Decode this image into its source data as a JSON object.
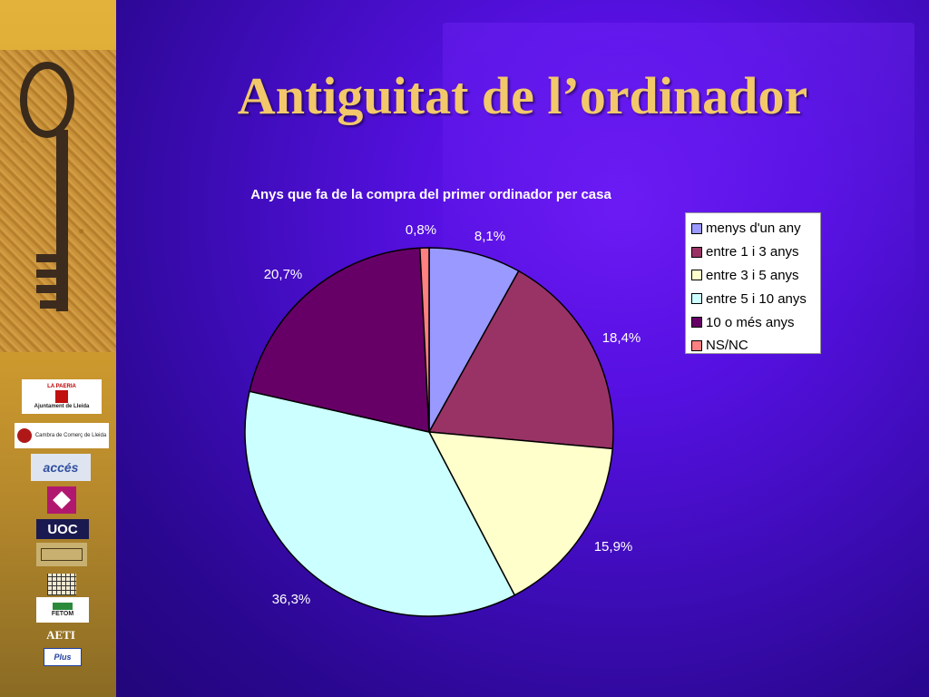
{
  "slide": {
    "title": "Antiguitat de l’ordinador"
  },
  "sidebar": {
    "logos": [
      {
        "name": "la-paeria-logo",
        "line1": "LA PAERIA",
        "line2": "Ajuntament de Lleida"
      },
      {
        "name": "cambra-comerc-logo",
        "text": "Cambra de Comerç de Lleida"
      },
      {
        "name": "acces-logo",
        "text": "accés"
      },
      {
        "name": "emblem-logo",
        "text": ""
      },
      {
        "name": "uoc-logo",
        "text": "UOC"
      },
      {
        "name": "building-logo",
        "text": ""
      },
      {
        "name": "grid-logo",
        "text": ""
      },
      {
        "name": "fetom-logo",
        "text": "FETOM"
      },
      {
        "name": "aeti-logo",
        "text": "AETI"
      },
      {
        "name": "plus-logo",
        "text": "Plus"
      }
    ]
  },
  "chart_data": {
    "type": "pie",
    "title": "Anys que fa de la compra del primer ordinador per casa",
    "legend_position": "top-right",
    "categories": [
      "menys d'un any",
      "entre 1 i 3 anys",
      "entre 3 i 5 anys",
      "entre 5 i 10 anys",
      "10 o més anys",
      "NS/NC"
    ],
    "values": [
      8.1,
      18.4,
      15.9,
      36.3,
      20.7,
      0.8
    ],
    "labels": [
      "8,1%",
      "18,4%",
      "15,9%",
      "36,3%",
      "20,7%",
      "0,8%"
    ],
    "colors": [
      "#9999ff",
      "#993366",
      "#ffffcc",
      "#ccffff",
      "#660066",
      "#ff8080"
    ]
  }
}
